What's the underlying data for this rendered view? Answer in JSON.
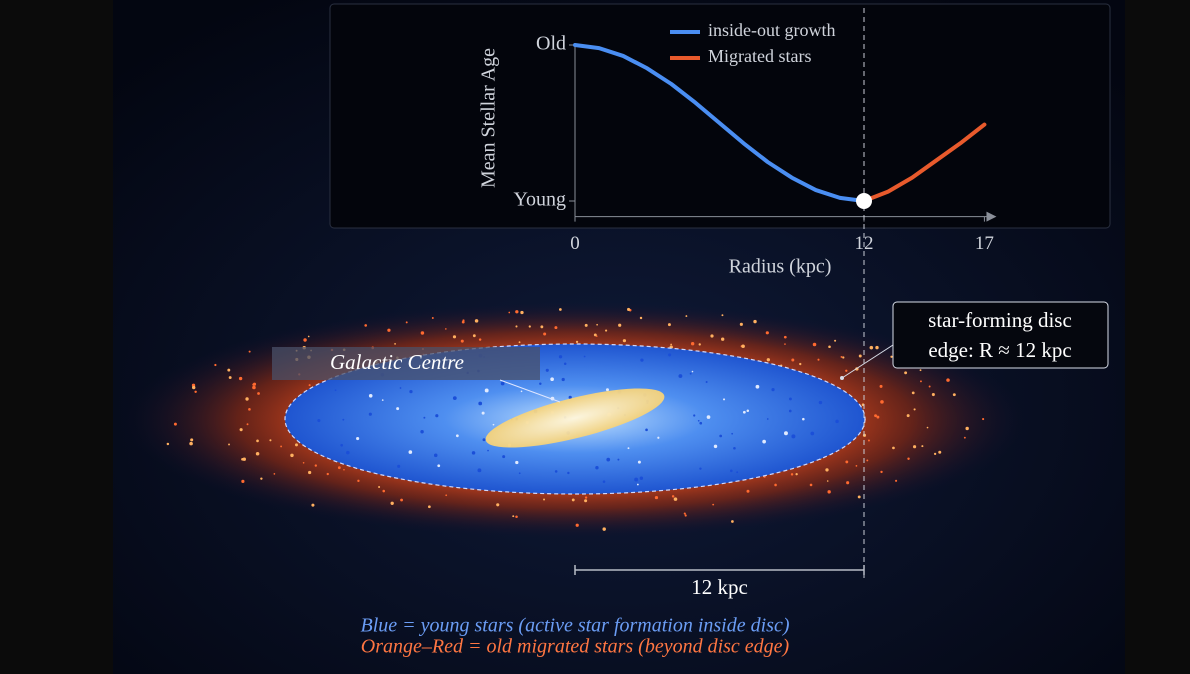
{
  "chart_data": {
    "type": "line",
    "y_label": "Mean Stellar Age",
    "x_label": "Radius (kpc)",
    "xlim": [
      0,
      17.5
    ],
    "xticks": [
      0,
      12,
      17
    ],
    "ylim": [
      -0.1,
      1
    ],
    "yticks": [
      {
        "value": 1,
        "label": "Old"
      },
      {
        "value": 0,
        "label": "Young"
      }
    ],
    "vline": 12,
    "series": [
      {
        "name": "inside-out growth",
        "color": "#4a8ef2",
        "x": [
          0,
          1,
          2,
          3,
          4,
          5,
          6,
          7,
          8,
          9,
          10,
          11,
          12
        ],
        "values": [
          1,
          0.98,
          0.93,
          0.85,
          0.75,
          0.63,
          0.5,
          0.37,
          0.25,
          0.15,
          0.07,
          0.02,
          0
        ]
      },
      {
        "name": "Migrated stars",
        "color": "#e85a2c",
        "x": [
          12,
          13,
          14,
          15,
          16,
          17
        ],
        "values": [
          0,
          0.06,
          0.15,
          0.26,
          0.37,
          0.49
        ]
      }
    ],
    "annotations": {
      "centre": "Galactic Centre",
      "edge": [
        "star-forming disc",
        "edge: R ≈ 12 kpc"
      ],
      "scale_bar": "12 kpc",
      "caption": [
        "Blue = young stars (active star formation inside disc)",
        "Orange–Red = old migrated stars (beyond disc edge)"
      ]
    }
  }
}
